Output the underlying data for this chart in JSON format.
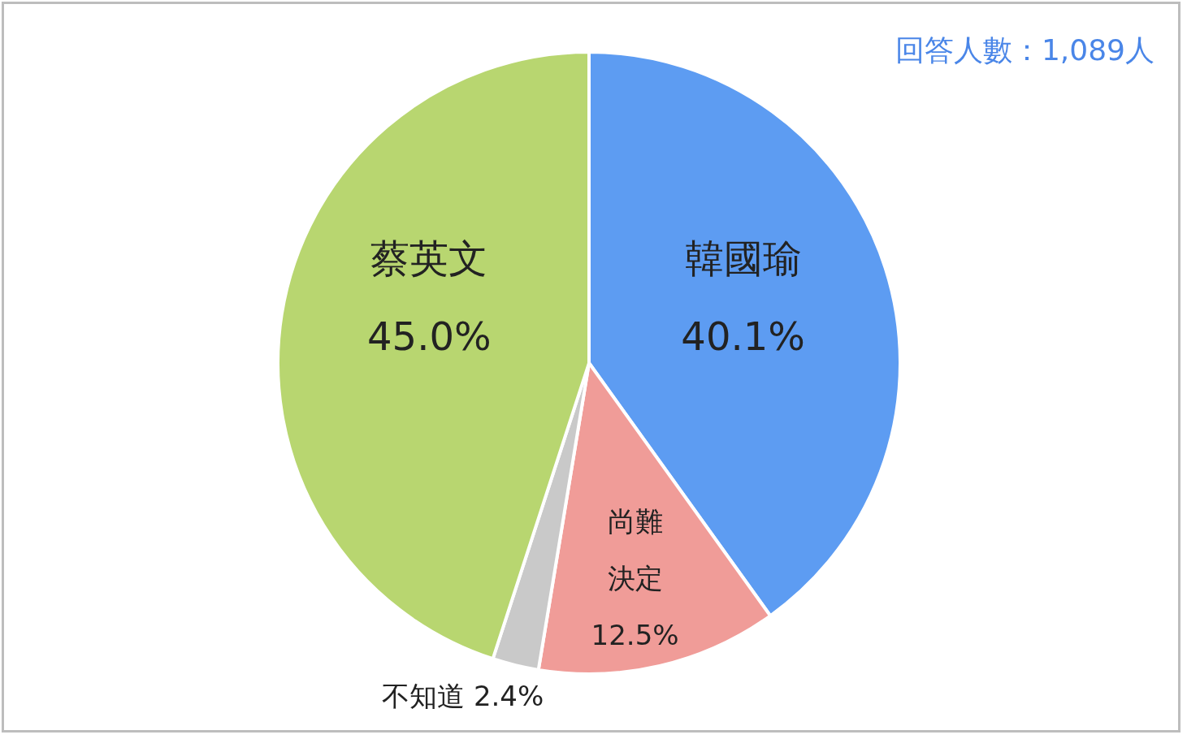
{
  "chart_data": {
    "type": "pie",
    "categories": [
      "韓國瑜",
      "尚難決定",
      "不知道",
      "蔡英文"
    ],
    "values": [
      40.1,
      12.5,
      2.4,
      45.0
    ],
    "colors": [
      "#5d9cf2",
      "#f09c98",
      "#c9c9c9",
      "#b8d670"
    ],
    "value_labels": [
      "40.1%",
      "12.5%",
      "2.4%",
      "45.0%"
    ],
    "annotations": [
      "回答人數：1,089人"
    ],
    "legend": false
  }
}
